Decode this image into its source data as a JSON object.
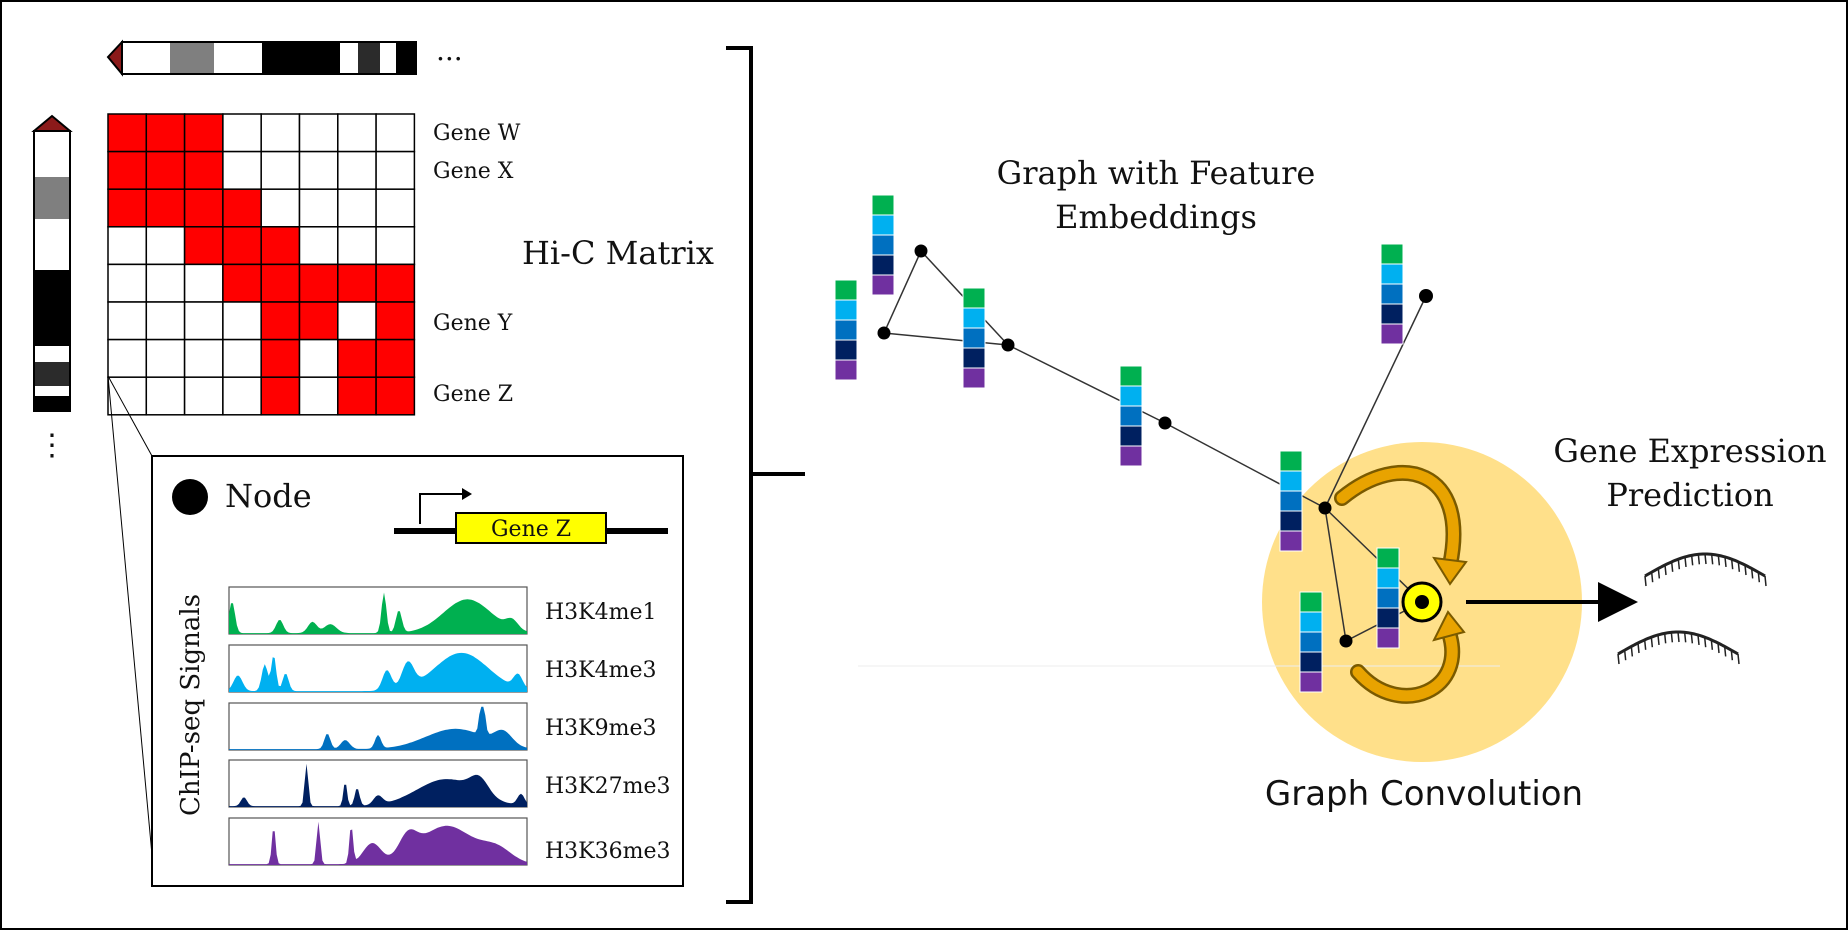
{
  "ellipsis_top": "...",
  "ellipsis_left": "⋮",
  "hic": {
    "title": "Hi-C Matrix",
    "gene_labels": [
      "Gene W",
      "Gene X",
      "Gene Y",
      "Gene Z"
    ],
    "matrix": [
      [
        1,
        1,
        1,
        0,
        0,
        0,
        0,
        0
      ],
      [
        1,
        1,
        1,
        0,
        0,
        0,
        0,
        0
      ],
      [
        1,
        1,
        1,
        1,
        0,
        0,
        0,
        0
      ],
      [
        0,
        0,
        1,
        1,
        1,
        0,
        0,
        0
      ],
      [
        0,
        0,
        0,
        1,
        1,
        1,
        1,
        1
      ],
      [
        0,
        0,
        0,
        0,
        1,
        1,
        0,
        1
      ],
      [
        0,
        0,
        0,
        0,
        1,
        0,
        1,
        1
      ],
      [
        0,
        0,
        0,
        0,
        1,
        0,
        1,
        1
      ]
    ],
    "filled_color": "#ff0000",
    "empty_color": "#ffffff"
  },
  "inset": {
    "node_label": "Node",
    "gene_label": "Gene Z",
    "gene_box_color": "#ffff00",
    "axis_title": "ChIP-seq Signals",
    "tracks": [
      {
        "name": "H3K4me1",
        "color": "#00b050"
      },
      {
        "name": "H3K4me3",
        "color": "#00b0f0"
      },
      {
        "name": "H3K9me3",
        "color": "#0070c0"
      },
      {
        "name": "H3K27me3",
        "color": "#002060"
      },
      {
        "name": "H3K36me3",
        "color": "#7030a0"
      }
    ]
  },
  "graph": {
    "title_line1": "Graph with Feature",
    "title_line2": "Embeddings",
    "embedding_colors": [
      "#00b050",
      "#00b0f0",
      "#0070c0",
      "#002060",
      "#7030a0"
    ]
  },
  "convolution": {
    "label": "Graph Convolution",
    "halo_color": "#ffe08a",
    "arrow_color": "#e8a300",
    "center_node_color": "#ffff00"
  },
  "prediction": {
    "line1": "Gene Expression",
    "line2": "Prediction"
  }
}
